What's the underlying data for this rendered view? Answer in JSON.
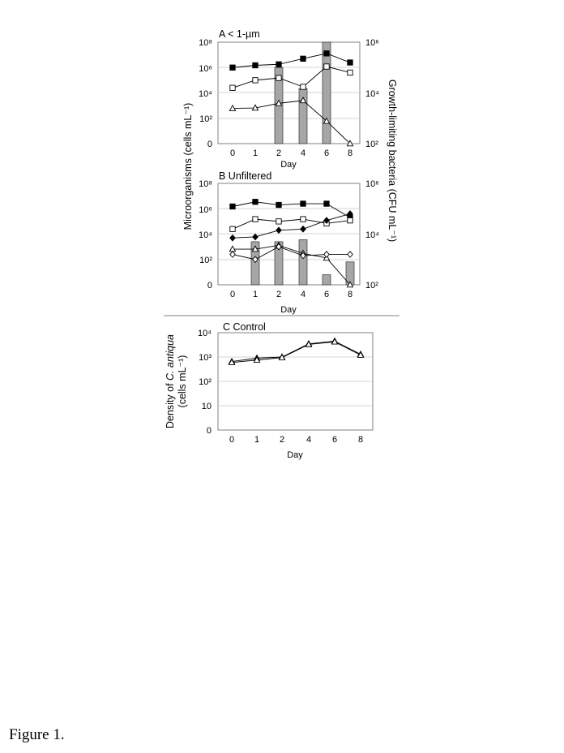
{
  "caption": "Figure 1.",
  "shared_left_axis_label": "Microorganisms (cells mL⁻¹)",
  "shared_right_axis_label": "Growth-limiting bacteria (CFU mL⁻¹)",
  "chart_data": [
    {
      "type": "line",
      "title": "A  < 1-µm",
      "xlabel": "Day",
      "x_categories": [
        "0",
        "1",
        "2",
        "4",
        "6",
        "8"
      ],
      "y_scale": "log",
      "ylim": [
        1,
        100000000
      ],
      "y_tick_labels": [
        "10⁸",
        "10⁶",
        "10⁴",
        "10²",
        "0"
      ],
      "y2_scale": "log",
      "y2lim": [
        100,
        1000000
      ],
      "y2_tick_labels": [
        "10⁶",
        "10⁴",
        "10²"
      ],
      "grid": true,
      "bars": {
        "axis": "right",
        "color": "#a6a6a6",
        "values": [
          null,
          null,
          100000,
          15000,
          1000000,
          null
        ]
      },
      "series": [
        {
          "marker": "filled-square",
          "values": [
            1000000,
            1500000,
            1800000,
            5000000,
            13000000,
            2500000
          ]
        },
        {
          "marker": "open-square",
          "values": [
            25000,
            100000,
            150000,
            30000,
            1200000,
            400000
          ]
        },
        {
          "marker": "open-triangle",
          "values": [
            600,
            650,
            1500,
            2500,
            60,
            1
          ]
        }
      ]
    },
    {
      "type": "line",
      "title": "B  Unfiltered",
      "xlabel": "Day",
      "x_categories": [
        "0",
        "1",
        "2",
        "4",
        "6",
        "8"
      ],
      "y_scale": "log",
      "ylim": [
        1,
        100000000
      ],
      "y_tick_labels": [
        "10⁸",
        "10⁶",
        "10⁴",
        "10²",
        "0"
      ],
      "y2_scale": "log",
      "y2lim": [
        100,
        1000000
      ],
      "y2_tick_labels": [
        "10⁶",
        "10⁴",
        "10²"
      ],
      "grid": true,
      "bars": {
        "axis": "right",
        "color": "#a6a6a6",
        "values": [
          null,
          5000,
          5000,
          6000,
          250,
          800
        ]
      },
      "series": [
        {
          "marker": "filled-square",
          "values": [
            1500000,
            3500000,
            2000000,
            2500000,
            2500000,
            200000
          ]
        },
        {
          "marker": "open-square",
          "values": [
            25000,
            150000,
            100000,
            150000,
            70000,
            120000
          ]
        },
        {
          "marker": "filled-diamond",
          "values": [
            5000,
            6000,
            20000,
            25000,
            120000,
            400000
          ]
        },
        {
          "marker": "open-triangle",
          "values": [
            650,
            650,
            1300,
            300,
            130,
            1
          ]
        },
        {
          "marker": "open-diamond",
          "values": [
            250,
            100,
            1000,
            200,
            250,
            250
          ]
        }
      ]
    },
    {
      "type": "line",
      "title": "C Control",
      "xlabel": "Day",
      "ylabel": "Density of C. antiqua (cells mL⁻¹)",
      "ylabel_parts": [
        "Density of ",
        "C. antiqua",
        "(cells mL⁻¹)"
      ],
      "x_categories": [
        "0",
        "1",
        "2",
        "4",
        "6",
        "8"
      ],
      "y_scale": "log",
      "ylim": [
        1,
        10000
      ],
      "y_tick_labels": [
        "10⁴",
        "10³",
        "10²",
        "10",
        "0"
      ],
      "grid": true,
      "series": [
        {
          "marker": "filled-triangle",
          "values": [
            650,
            900,
            1000,
            3500,
            4500,
            1300
          ]
        },
        {
          "marker": "open-triangle",
          "values": [
            600,
            750,
            950,
            3300,
            4200,
            1200
          ]
        }
      ]
    }
  ]
}
